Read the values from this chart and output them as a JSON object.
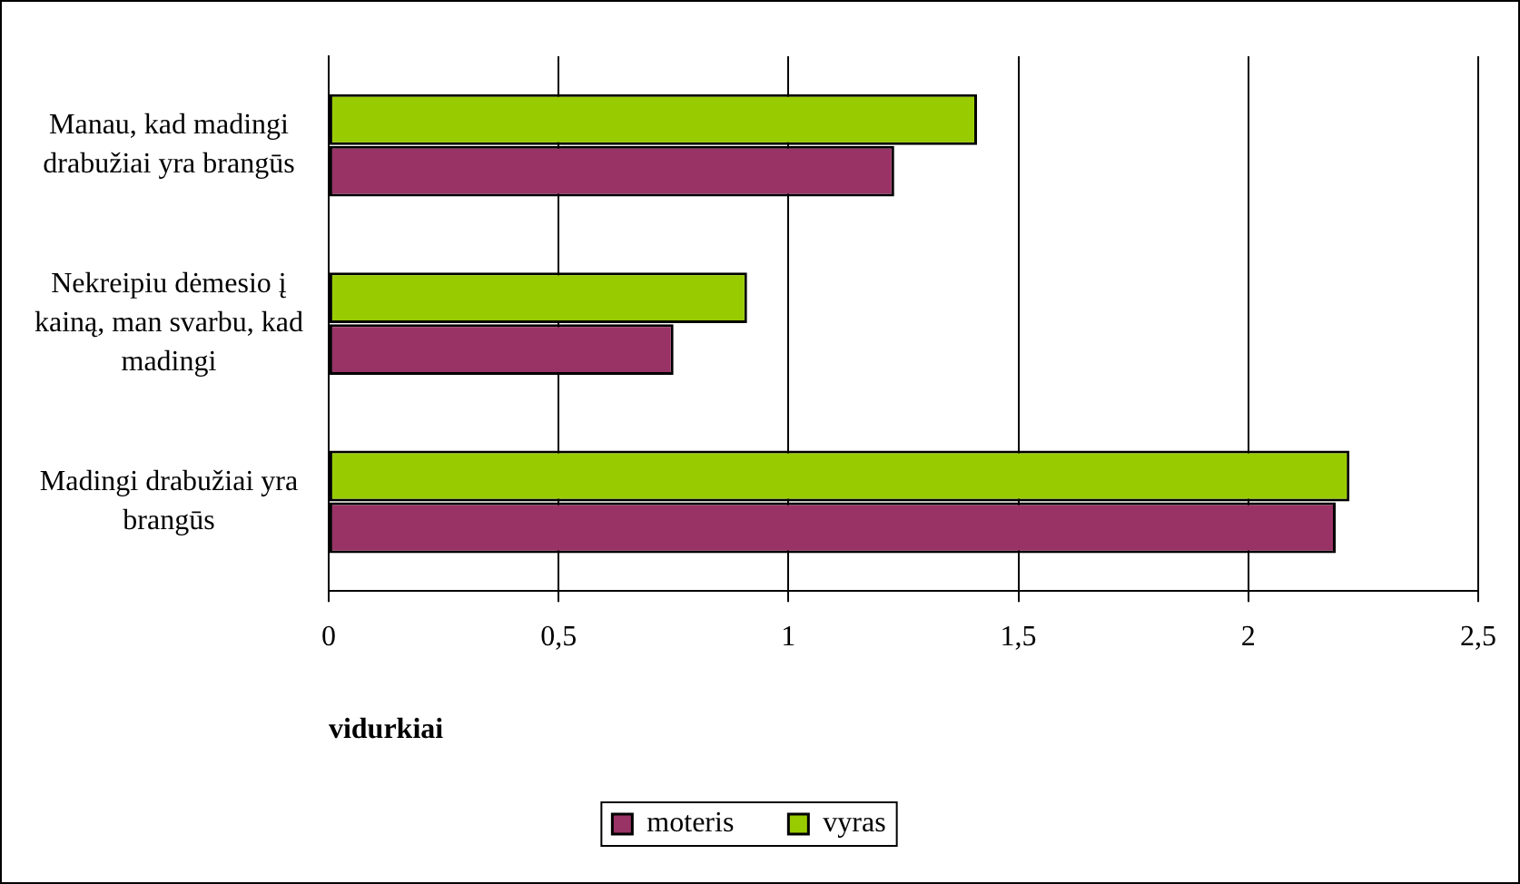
{
  "chart_data": {
    "type": "bar",
    "orientation": "horizontal",
    "xlabel": "vidurkiai",
    "categories": [
      "Manau, kad madingi drabužiai yra brangūs",
      "Nekreipiu dėmesio į kainą, man svarbu, kad madingi",
      "Madingi drabužiai yra brangūs"
    ],
    "series": [
      {
        "name": "moteris",
        "color": "#993366",
        "values": [
          1.23,
          0.75,
          2.19
        ]
      },
      {
        "name": "vyras",
        "color": "#99cc00",
        "values": [
          1.41,
          0.91,
          2.22
        ]
      }
    ],
    "xlim": [
      0,
      2.5
    ],
    "xticks": [
      0,
      {
        "value": 0.5,
        "label": "0,5"
      },
      1,
      {
        "value": 1.5,
        "label": "1,5"
      },
      2,
      {
        "value": 2.5,
        "label": "2,5"
      }
    ],
    "grid": "x",
    "legend": "bottom"
  }
}
